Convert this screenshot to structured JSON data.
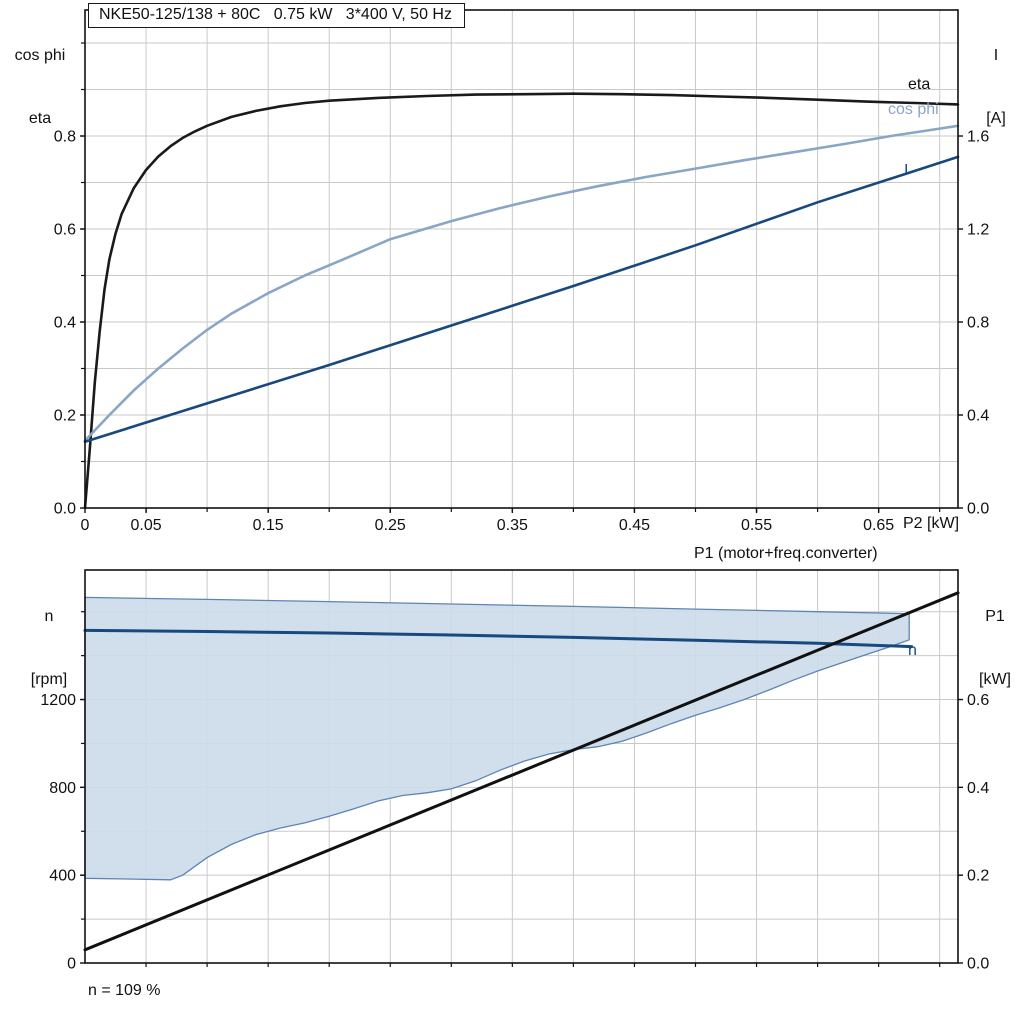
{
  "header": {
    "title": "NKE50-125/138 + 80C   0.75 kW   3*400 V, 50 Hz"
  },
  "labels": {
    "top_left_axis_line1": "cos phi",
    "top_left_axis_line2": "eta",
    "top_right_axis_line1": "I",
    "top_right_axis_line2": "[A]",
    "top_x_axis": "P2 [kW]",
    "bottom_left_axis_line1": "n",
    "bottom_left_axis_line2": "[rpm]",
    "bottom_right_axis_line1": "P1",
    "bottom_right_axis_line2": "[kW]",
    "p1_line": "P1 (motor+freq.converter)",
    "eta_line": "eta",
    "cosphi_line": "cos phi",
    "current_line": "I",
    "n_line": "n",
    "speed_note": "n = 109 %"
  },
  "colors": {
    "eta": "#1a1a1a",
    "cos_phi": "#8aa5c6",
    "current": "#17497e",
    "n_line": "#17497e",
    "p1_line": "#111111",
    "band_fill": "#ccdbea",
    "band_stroke": "#5d84b4",
    "grid": "#c9c9c9"
  },
  "chart_data": [
    {
      "id": "top",
      "type": "line",
      "title": "NKE50-125/138 + 80C   0.75 kW   3*400 V, 50 Hz",
      "grid_color": "#c9c9c9",
      "x_axis": {
        "label": "P2 [kW]",
        "min": 0,
        "max": 0.715,
        "grid_step": 0.05,
        "ticks": [
          {
            "v": 0,
            "label": "0"
          },
          {
            "v": 0.05,
            "label": "0.05"
          },
          {
            "v": 0.15,
            "label": "0.15"
          },
          {
            "v": 0.25,
            "label": "0.25"
          },
          {
            "v": 0.35,
            "label": "0.35"
          },
          {
            "v": 0.45,
            "label": "0.45"
          },
          {
            "v": 0.55,
            "label": "0.55"
          },
          {
            "v": 0.65,
            "label": "0.65"
          }
        ]
      },
      "y_left": {
        "label": "cos phi / eta",
        "min": 0,
        "max": 1.071,
        "grid_step": 0.1,
        "ticks": [
          {
            "v": 0.0,
            "label": "0.0"
          },
          {
            "v": 0.2,
            "label": "0.2"
          },
          {
            "v": 0.4,
            "label": "0.4"
          },
          {
            "v": 0.6,
            "label": "0.6"
          },
          {
            "v": 0.8,
            "label": "0.8"
          }
        ]
      },
      "y_right": {
        "label": "I [A]",
        "min": 0,
        "max": 2.142,
        "ticks": [
          {
            "v": 0.0,
            "label": "0.0"
          },
          {
            "v": 0.4,
            "label": "0.4"
          },
          {
            "v": 0.8,
            "label": "0.8"
          },
          {
            "v": 1.2,
            "label": "1.2"
          },
          {
            "v": 1.6,
            "label": "1.6"
          }
        ]
      },
      "series": [
        {
          "name": "eta",
          "axis": "left",
          "color": "#1a1a1a",
          "width": 2.6,
          "points": [
            [
              0,
              0
            ],
            [
              0.004,
              0.13
            ],
            [
              0.008,
              0.27
            ],
            [
              0.012,
              0.38
            ],
            [
              0.016,
              0.47
            ],
            [
              0.02,
              0.535
            ],
            [
              0.025,
              0.59
            ],
            [
              0.03,
              0.632
            ],
            [
              0.04,
              0.688
            ],
            [
              0.05,
              0.727
            ],
            [
              0.06,
              0.756
            ],
            [
              0.07,
              0.778
            ],
            [
              0.08,
              0.796
            ],
            [
              0.09,
              0.81
            ],
            [
              0.1,
              0.822
            ],
            [
              0.12,
              0.841
            ],
            [
              0.14,
              0.854
            ],
            [
              0.16,
              0.864
            ],
            [
              0.18,
              0.871
            ],
            [
              0.2,
              0.876
            ],
            [
              0.24,
              0.882
            ],
            [
              0.28,
              0.886
            ],
            [
              0.32,
              0.889
            ],
            [
              0.36,
              0.89
            ],
            [
              0.4,
              0.891
            ],
            [
              0.44,
              0.89
            ],
            [
              0.48,
              0.888
            ],
            [
              0.52,
              0.885
            ],
            [
              0.56,
              0.882
            ],
            [
              0.6,
              0.878
            ],
            [
              0.64,
              0.874
            ],
            [
              0.68,
              0.871
            ],
            [
              0.715,
              0.868
            ]
          ]
        },
        {
          "name": "cos phi",
          "axis": "left",
          "color": "#8aa5c6",
          "width": 2.6,
          "points": [
            [
              0,
              0.145
            ],
            [
              0.02,
              0.2
            ],
            [
              0.04,
              0.253
            ],
            [
              0.06,
              0.3
            ],
            [
              0.08,
              0.343
            ],
            [
              0.1,
              0.383
            ],
            [
              0.12,
              0.418
            ],
            [
              0.15,
              0.462
            ],
            [
              0.18,
              0.5
            ],
            [
              0.21,
              0.533
            ],
            [
              0.25,
              0.578
            ],
            [
              0.3,
              0.617
            ],
            [
              0.34,
              0.645
            ],
            [
              0.38,
              0.67
            ],
            [
              0.42,
              0.692
            ],
            [
              0.46,
              0.712
            ],
            [
              0.5,
              0.73
            ],
            [
              0.54,
              0.748
            ],
            [
              0.58,
              0.765
            ],
            [
              0.62,
              0.782
            ],
            [
              0.66,
              0.8
            ],
            [
              0.7,
              0.816
            ],
            [
              0.715,
              0.822
            ]
          ]
        },
        {
          "name": "I",
          "axis": "right",
          "color": "#17497e",
          "width": 2.6,
          "points": [
            [
              0,
              0.285
            ],
            [
              0.1,
              0.45
            ],
            [
              0.2,
              0.615
            ],
            [
              0.3,
              0.785
            ],
            [
              0.4,
              0.955
            ],
            [
              0.5,
              1.13
            ],
            [
              0.6,
              1.315
            ],
            [
              0.715,
              1.51
            ]
          ]
        }
      ]
    },
    {
      "id": "bottom",
      "type": "line",
      "grid_color": "#c9c9c9",
      "annotation": "n = 109 %",
      "x_axis": {
        "label": "",
        "min": 0,
        "max": 0.715,
        "grid_step": 0.05,
        "ticks": []
      },
      "y_left": {
        "label": "n [rpm]",
        "min": 0,
        "max": 1790,
        "grid_step": 200,
        "ticks": [
          {
            "v": 0,
            "label": "0"
          },
          {
            "v": 400,
            "label": "400"
          },
          {
            "v": 800,
            "label": "800"
          },
          {
            "v": 1200,
            "label": "1200"
          }
        ]
      },
      "y_right": {
        "label": "P1 [kW]",
        "min": 0,
        "max": 0.895,
        "ticks": [
          {
            "v": 0.0,
            "label": "0.0"
          },
          {
            "v": 0.2,
            "label": "0.2"
          },
          {
            "v": 0.4,
            "label": "0.4"
          },
          {
            "v": 0.6,
            "label": "0.6"
          }
        ]
      },
      "series": [
        {
          "name": "speed range",
          "axis": "left",
          "band": true,
          "fill": "#ccdbea",
          "fill_opacity": 0.9,
          "stroke": "#5d84b4",
          "stroke_width": 1.3,
          "upper": [
            [
              0,
              1665
            ],
            [
              0.1,
              1656
            ],
            [
              0.2,
              1646
            ],
            [
              0.3,
              1635
            ],
            [
              0.4,
              1624
            ],
            [
              0.5,
              1612
            ],
            [
              0.6,
              1600
            ],
            [
              0.675,
              1591
            ]
          ],
          "lower": [
            [
              0,
              386
            ],
            [
              0.04,
              382
            ],
            [
              0.07,
              379
            ],
            [
              0.08,
              400
            ],
            [
              0.1,
              480
            ],
            [
              0.12,
              540
            ],
            [
              0.14,
              585
            ],
            [
              0.16,
              615
            ],
            [
              0.18,
              638
            ],
            [
              0.2,
              668
            ],
            [
              0.22,
              702
            ],
            [
              0.24,
              738
            ],
            [
              0.26,
              763
            ],
            [
              0.28,
              775
            ],
            [
              0.3,
              793
            ],
            [
              0.32,
              830
            ],
            [
              0.34,
              878
            ],
            [
              0.36,
              920
            ],
            [
              0.38,
              952
            ],
            [
              0.4,
              972
            ],
            [
              0.42,
              985
            ],
            [
              0.44,
              1010
            ],
            [
              0.46,
              1048
            ],
            [
              0.48,
              1090
            ],
            [
              0.5,
              1128
            ],
            [
              0.52,
              1163
            ],
            [
              0.54,
              1200
            ],
            [
              0.56,
              1243
            ],
            [
              0.58,
              1288
            ],
            [
              0.6,
              1330
            ],
            [
              0.62,
              1368
            ],
            [
              0.64,
              1405
            ],
            [
              0.66,
              1442
            ],
            [
              0.675,
              1472
            ]
          ]
        },
        {
          "name": "n",
          "axis": "left",
          "color": "#17497e",
          "width": 3,
          "points": [
            [
              0,
              1515
            ],
            [
              0.1,
              1510
            ],
            [
              0.2,
              1503
            ],
            [
              0.3,
              1494
            ],
            [
              0.4,
              1483
            ],
            [
              0.5,
              1470
            ],
            [
              0.6,
              1456
            ],
            [
              0.677,
              1441
            ]
          ]
        },
        {
          "name": "P1 (motor+freq.converter)",
          "axis": "right",
          "color": "#111111",
          "width": 3,
          "points": [
            [
              0,
              0.03
            ],
            [
              0.715,
              0.843
            ]
          ]
        }
      ]
    }
  ]
}
